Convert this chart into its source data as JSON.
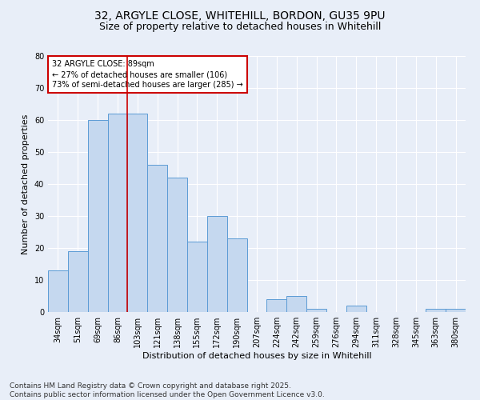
{
  "title1": "32, ARGYLE CLOSE, WHITEHILL, BORDON, GU35 9PU",
  "title2": "Size of property relative to detached houses in Whitehill",
  "xlabel": "Distribution of detached houses by size in Whitehill",
  "ylabel": "Number of detached properties",
  "categories": [
    "34sqm",
    "51sqm",
    "69sqm",
    "86sqm",
    "103sqm",
    "121sqm",
    "138sqm",
    "155sqm",
    "172sqm",
    "190sqm",
    "207sqm",
    "224sqm",
    "242sqm",
    "259sqm",
    "276sqm",
    "294sqm",
    "311sqm",
    "328sqm",
    "345sqm",
    "363sqm",
    "380sqm"
  ],
  "values": [
    13,
    19,
    60,
    62,
    62,
    46,
    42,
    22,
    30,
    23,
    0,
    4,
    5,
    1,
    0,
    2,
    0,
    0,
    0,
    1,
    1
  ],
  "bar_color": "#c5d8ef",
  "bar_edge_color": "#5b9bd5",
  "background_color": "#e8eef8",
  "grid_color": "#ffffff",
  "vline_pos": 3.5,
  "vline_color": "#cc0000",
  "annotation_text": "32 ARGYLE CLOSE: 89sqm\n← 27% of detached houses are smaller (106)\n73% of semi-detached houses are larger (285) →",
  "annotation_box_color": "#ffffff",
  "annotation_box_edge": "#cc0000",
  "ylim": [
    0,
    80
  ],
  "yticks": [
    0,
    10,
    20,
    30,
    40,
    50,
    60,
    70,
    80
  ],
  "footer": "Contains HM Land Registry data © Crown copyright and database right 2025.\nContains public sector information licensed under the Open Government Licence v3.0.",
  "title_fontsize": 10,
  "subtitle_fontsize": 9,
  "tick_fontsize": 7,
  "ylabel_fontsize": 8,
  "xlabel_fontsize": 8,
  "footer_fontsize": 6.5,
  "ann_fontsize": 7
}
